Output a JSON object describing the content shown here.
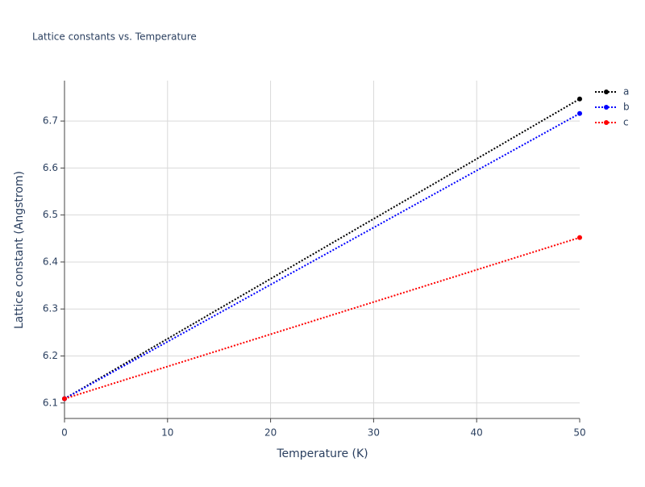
{
  "chart_data": {
    "type": "line",
    "title": "Lattice constants vs. Temperature",
    "x_label": "Temperature (K)",
    "y_label": "Lattice constant (Angstrom)",
    "x": [
      0,
      50
    ],
    "series": [
      {
        "name": "a",
        "color": "#000000",
        "values": [
          6.109,
          6.747
        ]
      },
      {
        "name": "b",
        "color": "#0000ff",
        "values": [
          6.109,
          6.716
        ]
      },
      {
        "name": "c",
        "color": "#ff0000",
        "values": [
          6.109,
          6.452
        ]
      }
    ],
    "xlim": [
      0,
      50
    ],
    "xticks": [
      0,
      10,
      20,
      30,
      40,
      50
    ],
    "ylim": [
      6.067,
      6.786
    ],
    "yticks": [
      6.1,
      6.2,
      6.3,
      6.4,
      6.5,
      6.6,
      6.7
    ],
    "grid": true,
    "legend": "top-right",
    "line_style": "dotted"
  }
}
